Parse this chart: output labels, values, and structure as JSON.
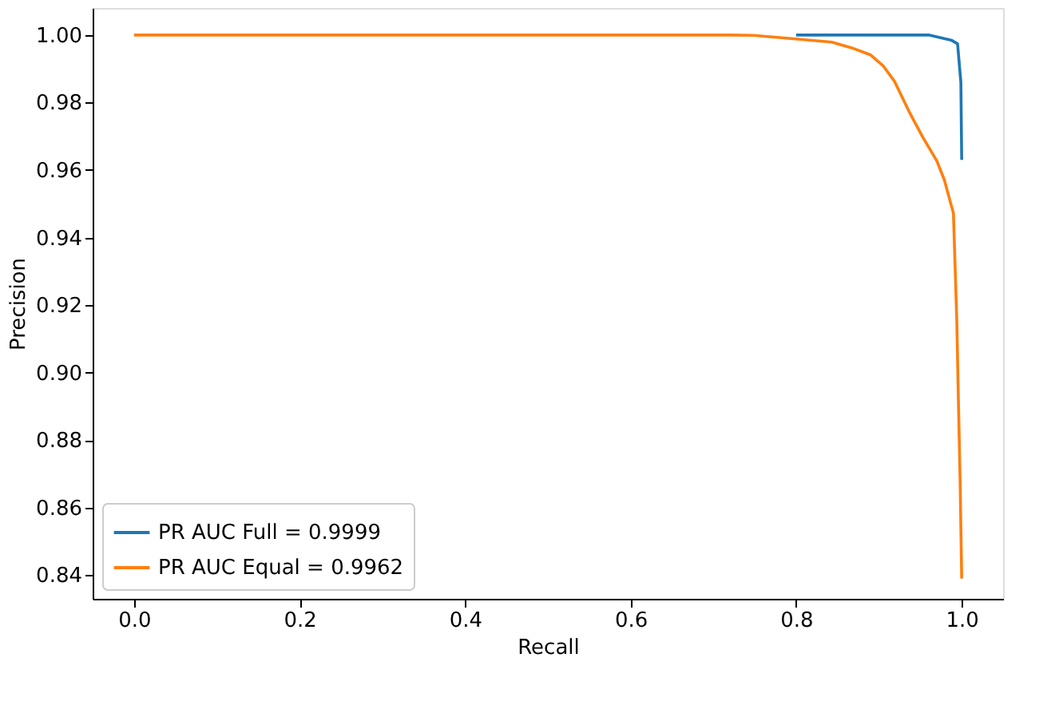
{
  "chart_data": {
    "type": "line",
    "xlabel": "Recall",
    "ylabel": "Precision",
    "xlim": [
      -0.05,
      1.05
    ],
    "ylim": [
      0.833,
      1.008
    ],
    "xticks": [
      {
        "value": 0,
        "label": "0.0"
      },
      {
        "value": 0.2,
        "label": "0.2"
      },
      {
        "value": 0.4,
        "label": "0.4"
      },
      {
        "value": 0.6,
        "label": "0.6"
      },
      {
        "value": 0.8,
        "label": "0.8"
      },
      {
        "value": 1,
        "label": "1.0"
      }
    ],
    "yticks": [
      {
        "value": 0.84,
        "label": "0.84"
      },
      {
        "value": 0.86,
        "label": "0.86"
      },
      {
        "value": 0.88,
        "label": "0.88"
      },
      {
        "value": 0.9,
        "label": "0.90"
      },
      {
        "value": 0.92,
        "label": "0.92"
      },
      {
        "value": 0.94,
        "label": "0.94"
      },
      {
        "value": 0.96,
        "label": "0.96"
      },
      {
        "value": 0.98,
        "label": "0.98"
      },
      {
        "value": 1,
        "label": "1.00"
      }
    ],
    "grid": false,
    "legend": "bottom left",
    "series": [
      {
        "name": "PR AUC Full = 0.9999",
        "color": "#1f77b4",
        "x": [
          0.8,
          0.9,
          0.96,
          0.988,
          0.995,
          0.999,
          1.0
        ],
        "values": [
          1.0,
          1.0,
          1.0,
          0.9984,
          0.9974,
          0.986,
          0.963
        ]
      },
      {
        "name": "PR AUC Equal = 0.9962",
        "color": "#ff7f0e",
        "x": [
          0,
          0.5,
          0.72,
          0.748,
          0.805,
          0.843,
          0.867,
          0.89,
          0.905,
          0.919,
          0.9375,
          0.953,
          0.97,
          0.979,
          0.99,
          0.994,
          0.996,
          0.998,
          1.0
        ],
        "values": [
          1.0,
          1.0,
          1.0,
          0.9999,
          0.9987,
          0.9979,
          0.9962,
          0.9941,
          0.9909,
          0.9862,
          0.9768,
          0.9697,
          0.9627,
          0.9571,
          0.9472,
          0.916,
          0.892,
          0.869,
          0.839
        ]
      }
    ]
  }
}
